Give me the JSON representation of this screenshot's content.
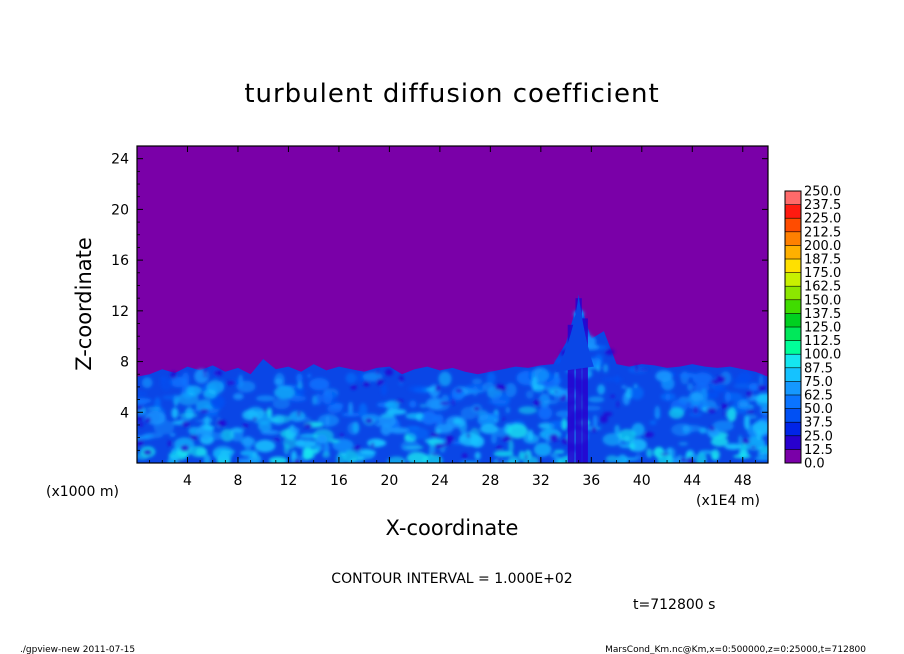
{
  "chart_data": {
    "type": "heatmap",
    "title": "turbulent diffusion coefficient",
    "xlabel": "X-coordinate",
    "ylabel": "Z-coordinate",
    "x_unit_left": "(x1000 m)",
    "x_unit_right": "(x1E4 m)",
    "xlim": [
      0,
      50
    ],
    "ylim": [
      0,
      25
    ],
    "x_ticks": [
      4,
      8,
      12,
      16,
      20,
      24,
      28,
      32,
      36,
      40,
      44,
      48
    ],
    "y_ticks": [
      4,
      8,
      12,
      16,
      20,
      24
    ],
    "colorbar": {
      "levels": [
        "0.0",
        "12.5",
        "25.0",
        "37.5",
        "50.0",
        "62.5",
        "75.0",
        "87.5",
        "100.0",
        "112.5",
        "125.0",
        "137.5",
        "150.0",
        "162.5",
        "175.0",
        "187.5",
        "200.0",
        "212.5",
        "225.0",
        "237.5",
        "250.0"
      ],
      "colors": [
        "#7a00a8",
        "#2800ce",
        "#0024e8",
        "#0050f4",
        "#0a74ff",
        "#1598ff",
        "#15c2ff",
        "#15e6f0",
        "#00ff99",
        "#00e85a",
        "#00d020",
        "#40dc00",
        "#8ce600",
        "#c8f000",
        "#ffe000",
        "#ffb000",
        "#ff8000",
        "#ff4c00",
        "#ff1a10",
        "#ff6a6a"
      ]
    },
    "background_color": "#7a00a8",
    "boundary_layer_top_z": [
      6.8,
      7.0,
      7.4,
      7.1,
      7.6,
      7.3,
      7.7,
      7.2,
      7.5,
      7.0,
      8.2,
      7.4,
      7.6,
      7.2,
      7.8,
      7.3,
      7.6,
      7.4,
      7.2,
      7.5,
      7.6,
      7.0,
      7.4,
      7.6,
      7.3,
      7.5,
      7.2,
      7.0,
      7.2,
      7.4,
      7.6,
      7.5,
      7.7,
      7.8,
      9.5,
      13.0,
      9.8,
      10.4,
      7.8,
      7.6,
      7.8,
      7.7,
      7.5,
      7.6,
      7.8,
      7.6,
      7.5,
      7.6,
      7.4,
      7.2,
      6.8
    ],
    "contour_interval": "CONTOUR INTERVAL = 1.000E+02",
    "time_label": "t=712800 s",
    "footer_left": "./gpview-new   2011-07-15",
    "footer_right": "MarsCond_Km.nc@Km,x=0:500000,z=0:25000,t=712800"
  }
}
